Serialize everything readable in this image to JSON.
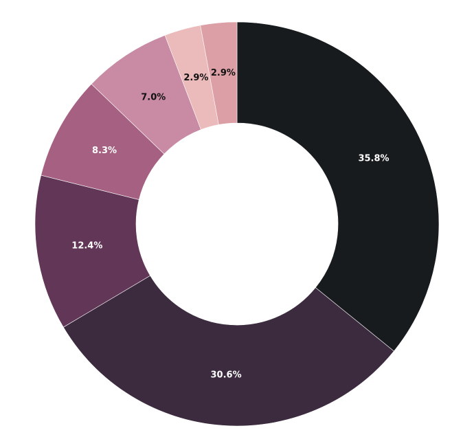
{
  "chart_data": {
    "type": "pie",
    "style": "donut",
    "start_angle": "12 o'clock",
    "direction": "clockwise",
    "slices": [
      {
        "label": "35.8%",
        "value": 35.8,
        "color": "#181b1e",
        "label_color": "#ffffff"
      },
      {
        "label": "30.6%",
        "value": 30.6,
        "color": "#3c2b3e",
        "label_color": "#ffffff"
      },
      {
        "label": "12.4%",
        "value": 12.4,
        "color": "#623657",
        "label_color": "#ffffff"
      },
      {
        "label": "8.3%",
        "value": 8.3,
        "color": "#a66182",
        "label_color": "#ffffff"
      },
      {
        "label": "7.0%",
        "value": 7.0,
        "color": "#c98aa3",
        "label_color": "#111111"
      },
      {
        "label": "2.9%",
        "value": 2.9,
        "color": "#ebbaba",
        "label_color": "#111111"
      },
      {
        "label": "2.9%",
        "value": 2.9,
        "color": "#dc9fa6",
        "label_color": "#111111"
      }
    ]
  }
}
